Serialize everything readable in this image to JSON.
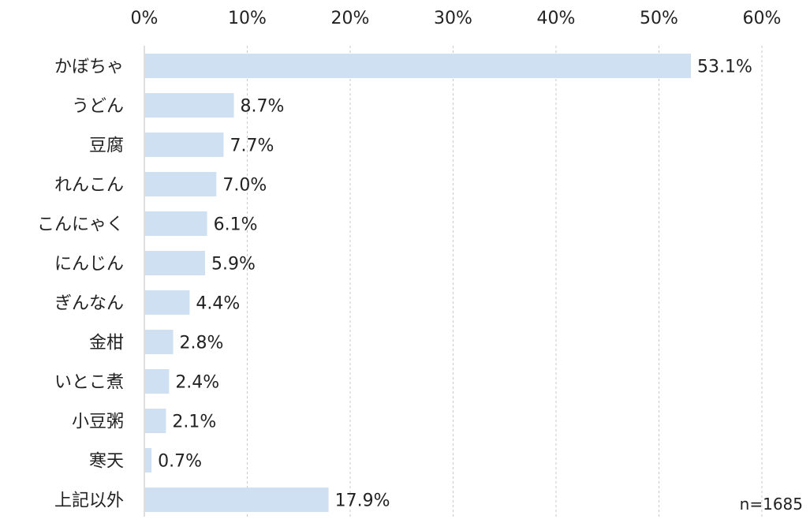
{
  "chart_data": {
    "type": "bar",
    "orientation": "horizontal",
    "categories": [
      "かぼちゃ",
      "うどん",
      "豆腐",
      "れんこん",
      "こんにゃく",
      "にんじん",
      "ぎんなん",
      "金柑",
      "いとこ煮",
      "小豆粥",
      "寒天",
      "上記以外"
    ],
    "values": [
      53.1,
      8.7,
      7.7,
      7.0,
      6.1,
      5.9,
      4.4,
      2.8,
      2.4,
      2.1,
      0.7,
      17.9
    ],
    "value_labels": [
      "53.1%",
      "8.7%",
      "7.7%",
      "7.0%",
      "6.1%",
      "5.9%",
      "4.4%",
      "2.8%",
      "2.4%",
      "2.1%",
      "0.7%",
      "17.9%"
    ],
    "x_ticks": [
      "0%",
      "10%",
      "20%",
      "30%",
      "40%",
      "50%",
      "60%"
    ],
    "xlim": [
      0,
      60
    ],
    "x_axis_position": "top",
    "grid": true,
    "bar_color": "#cfe0f2",
    "grid_color": "#c8c8c8",
    "note": "n=1685"
  }
}
